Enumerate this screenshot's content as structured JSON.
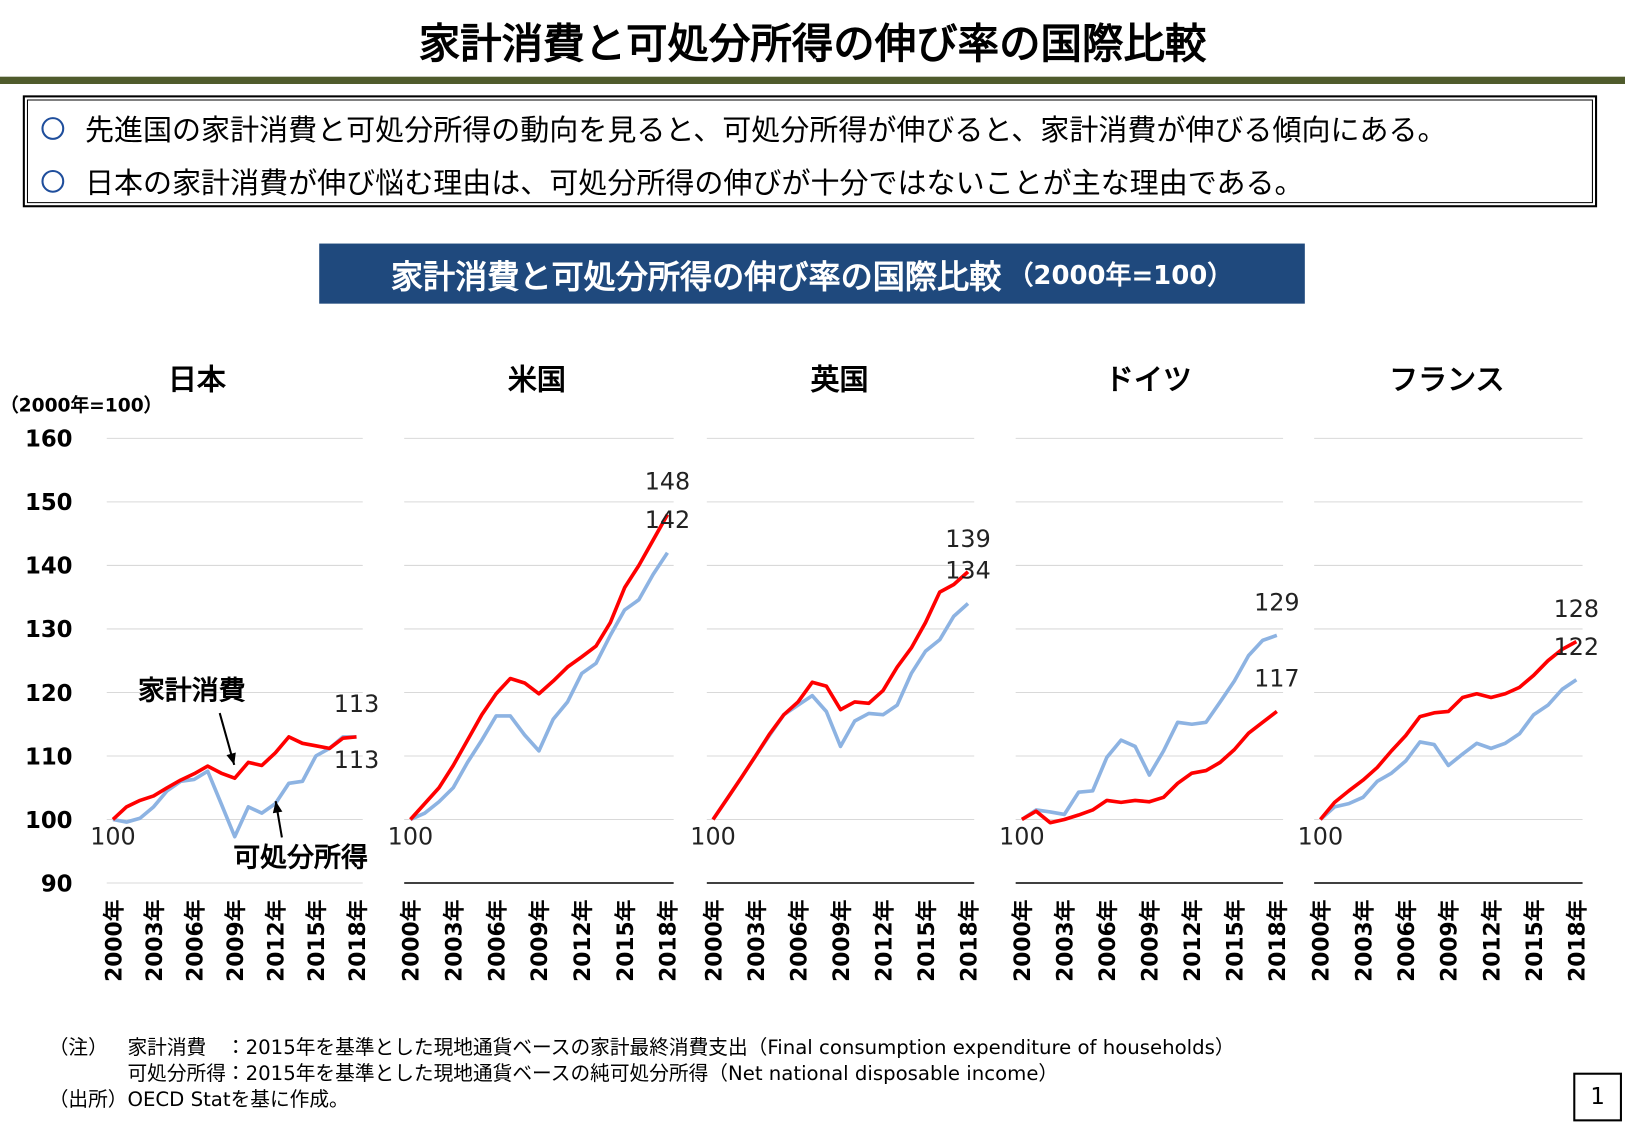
{
  "header": {
    "title": "家計消費と可処分所得の伸び率の国際比較",
    "bullets": [
      "先進国の家計消費と可処分所得の動向を見ると、可処分所得が伸びると、家計消費が伸びる傾向にある。",
      "日本の家計消費が伸び悩む理由は、可処分所得の伸びが十分ではないことが主な理由である。"
    ]
  },
  "banner": {
    "title": "家計消費と可処分所得の伸び率の国際比較",
    "unit": "（2000年=100）"
  },
  "chart_data": [
    {
      "type": "line",
      "title": "日本",
      "ylabel": "（2000年=100）",
      "categories": [
        "2000年",
        null,
        null,
        "2003年",
        null,
        null,
        "2006年",
        null,
        null,
        "2009年",
        null,
        null,
        "2012年",
        null,
        null,
        "2015年",
        null,
        null,
        "2018年"
      ],
      "ylim": [
        90,
        160
      ],
      "yticks": [
        90,
        100,
        110,
        120,
        130,
        140,
        150,
        160
      ],
      "grid": true,
      "series": [
        {
          "name": "家計消費",
          "color": "#ff0000",
          "values": [
            100,
            102,
            103,
            103.7,
            105,
            106.2,
            107.2,
            108.4,
            107.3,
            106.5,
            109,
            108.5,
            110.5,
            113,
            112,
            111.6,
            111.2,
            112.8,
            113
          ]
        },
        {
          "name": "可処分所得",
          "color": "#8db3e2",
          "values": [
            100,
            99.6,
            100.2,
            102,
            104.5,
            106,
            106.3,
            107.6,
            102.5,
            97.3,
            102,
            101,
            102.5,
            105.7,
            106,
            110,
            111.2,
            113,
            113
          ]
        }
      ]
    },
    {
      "type": "line",
      "title": "米国",
      "categories": [
        "2000年",
        null,
        null,
        "2003年",
        null,
        null,
        "2006年",
        null,
        null,
        "2009年",
        null,
        null,
        "2012年",
        null,
        null,
        "2015年",
        null,
        null,
        "2018年"
      ],
      "ylim": [
        90,
        160
      ],
      "grid": true,
      "series": [
        {
          "color": "#ff0000",
          "values": [
            100,
            102.5,
            105,
            108.5,
            112.5,
            116.5,
            119.8,
            122.2,
            121.5,
            119.8,
            121.8,
            124,
            125.6,
            127.3,
            131,
            136.5,
            140,
            144,
            148
          ]
        },
        {
          "color": "#8db3e2",
          "values": [
            100,
            101,
            102.8,
            105,
            109,
            112.5,
            116.3,
            116.3,
            113.3,
            110.8,
            115.8,
            118.5,
            123,
            124.6,
            129,
            133,
            134.6,
            138.6,
            142
          ]
        }
      ]
    },
    {
      "type": "line",
      "title": "英国",
      "categories": [
        "2000年",
        null,
        null,
        "2003年",
        null,
        null,
        "2006年",
        null,
        null,
        "2009年",
        null,
        null,
        "2012年",
        null,
        null,
        "2015年",
        null,
        null,
        "2018年"
      ],
      "ylim": [
        90,
        160
      ],
      "grid": true,
      "series": [
        {
          "color": "#ff0000",
          "values": [
            100,
            103.3,
            106.6,
            110,
            113.5,
            116.5,
            118.5,
            121.6,
            121,
            117.3,
            118.5,
            118.3,
            120.3,
            124,
            127,
            131,
            135.8,
            137,
            139
          ]
        },
        {
          "color": "#8db3e2",
          "values": [
            100,
            103.3,
            106.6,
            110,
            113.3,
            116.5,
            118,
            119.5,
            117,
            111.5,
            115.5,
            116.7,
            116.5,
            118,
            123,
            126.5,
            128.3,
            132,
            134
          ]
        }
      ]
    },
    {
      "type": "line",
      "title": "ドイツ",
      "categories": [
        "2000年",
        null,
        null,
        "2003年",
        null,
        null,
        "2006年",
        null,
        null,
        "2009年",
        null,
        null,
        "2012年",
        null,
        null,
        "2015年",
        null,
        null,
        "2018年"
      ],
      "ylim": [
        90,
        160
      ],
      "grid": true,
      "series": [
        {
          "color": "#ff0000",
          "values": [
            100,
            101.3,
            99.5,
            100,
            100.7,
            101.5,
            103,
            102.7,
            103,
            102.8,
            103.5,
            105.7,
            107.3,
            107.7,
            109,
            111,
            113.6,
            115.3,
            117
          ]
        },
        {
          "color": "#8db3e2",
          "values": [
            100,
            101.5,
            101.2,
            100.8,
            104.3,
            104.5,
            109.8,
            112.5,
            111.5,
            107,
            110.8,
            115.3,
            115,
            115.3,
            118.5,
            121.8,
            125.8,
            128.2,
            129
          ]
        }
      ]
    },
    {
      "type": "line",
      "title": "フランス",
      "categories": [
        "2000年",
        null,
        null,
        "2003年",
        null,
        null,
        "2006年",
        null,
        null,
        "2009年",
        null,
        null,
        "2012年",
        null,
        null,
        "2015年",
        null,
        null,
        "2018年"
      ],
      "ylim": [
        90,
        160
      ],
      "grid": true,
      "series": [
        {
          "color": "#ff0000",
          "values": [
            100,
            102.7,
            104.5,
            106.2,
            108.2,
            110.8,
            113.2,
            116.2,
            116.8,
            117,
            119.2,
            119.8,
            119.2,
            119.8,
            120.8,
            122.7,
            125,
            126.8,
            128
          ]
        },
        {
          "color": "#8db3e2",
          "values": [
            100,
            102,
            102.5,
            103.5,
            106,
            107.3,
            109.2,
            112.2,
            111.8,
            108.5,
            110.3,
            112,
            111.2,
            112,
            113.5,
            116.5,
            118,
            120.5,
            122
          ]
        }
      ]
    }
  ],
  "notes": {
    "note_label": "（注）",
    "note_lines": [
      "家計消費　：2015年を基準とした現地通貨ベースの家計最終消費支出（Final consumption expenditure of households）",
      "可処分所得：2015年を基準とした現地通貨ベースの純可処分所得（Net national disposable income）"
    ],
    "source_label": "（出所）",
    "source": "OECD Statを基に作成。"
  },
  "page_number": "1"
}
